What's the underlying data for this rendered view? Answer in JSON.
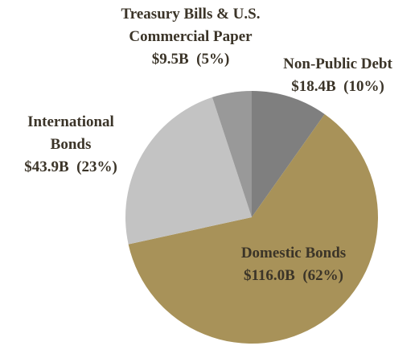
{
  "chart_data": {
    "type": "pie",
    "categories": [
      "Non-Public Debt",
      "Domestic Bonds",
      "International Bonds",
      "Treasury Bills & U.S. Commercial Paper"
    ],
    "values": [
      18.4,
      116.0,
      43.9,
      9.5
    ],
    "value_labels": [
      "$18.4B",
      "$116.0B",
      "$43.9B",
      "$9.5B"
    ],
    "percents": [
      10,
      62,
      23,
      5
    ],
    "percent_labels": [
      "(10%)",
      "(62%)",
      "(23%)",
      "(5%)"
    ],
    "colors": [
      "#7f7f7f",
      "#a89259",
      "#c3c3c3",
      "#999999"
    ]
  }
}
